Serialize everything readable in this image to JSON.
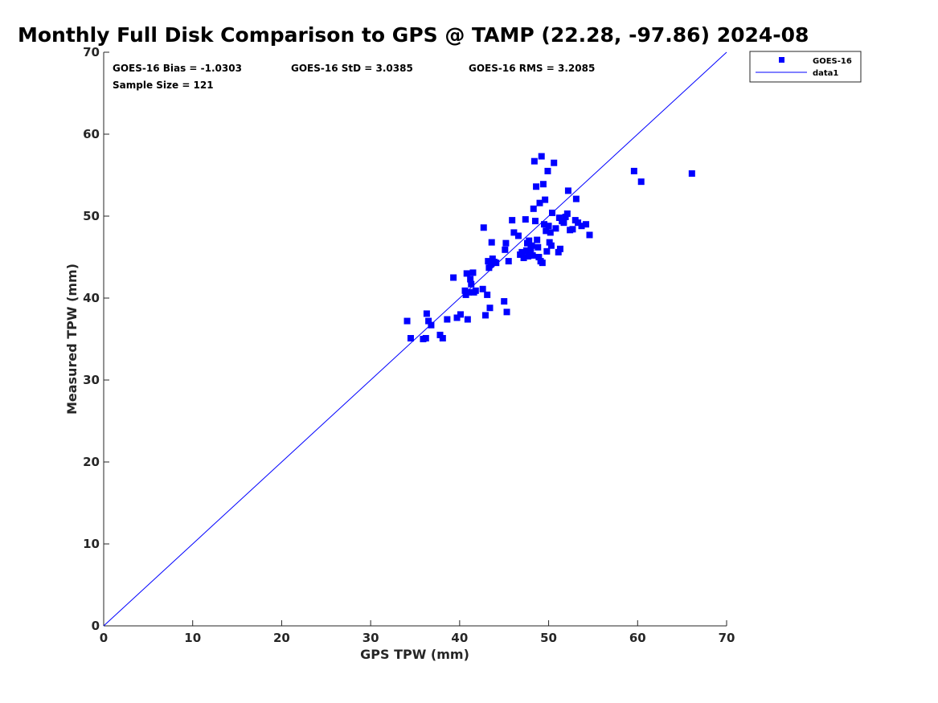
{
  "chart_data": {
    "type": "scatter",
    "title": "Monthly Full Disk Comparison to GPS @ TAMP (22.28, -97.86) 2024-08",
    "xlabel": "GPS TPW (mm)",
    "ylabel": "Measured TPW (mm)",
    "xlim": [
      0,
      70
    ],
    "ylim": [
      0,
      70
    ],
    "xticks": [
      "0",
      "10",
      "20",
      "30",
      "40",
      "50",
      "60",
      "70"
    ],
    "yticks": [
      "0",
      "10",
      "20",
      "30",
      "40",
      "50",
      "60",
      "70"
    ],
    "grid": false,
    "legend_position": "top-right",
    "legend": [
      {
        "label": "GOES-16",
        "marker": "square",
        "color": "#0000ff"
      },
      {
        "label": "data1",
        "marker": "line",
        "color": "#0000ff"
      }
    ],
    "stats": {
      "bias": "GOES-16 Bias = -1.0303",
      "std": "GOES-16 StD = 3.0385",
      "rms": "GOES-16 RMS = 3.2085",
      "sample": "Sample Size = 121"
    },
    "reference_line": {
      "name": "data1",
      "x": [
        0,
        70
      ],
      "y": [
        0,
        70
      ],
      "color": "#0000ff"
    },
    "series": [
      {
        "name": "GOES-16",
        "color": "#0000ff",
        "points": [
          [
            34.1,
            37.2
          ],
          [
            34.5,
            35.1
          ],
          [
            35.9,
            35.0
          ],
          [
            36.2,
            35.1
          ],
          [
            36.3,
            38.1
          ],
          [
            36.5,
            37.2
          ],
          [
            36.8,
            36.7
          ],
          [
            37.8,
            35.5
          ],
          [
            38.1,
            35.1
          ],
          [
            38.6,
            37.4
          ],
          [
            39.3,
            42.5
          ],
          [
            39.7,
            37.6
          ],
          [
            40.1,
            38.0
          ],
          [
            40.6,
            40.9
          ],
          [
            40.7,
            40.4
          ],
          [
            40.8,
            43.0
          ],
          [
            40.9,
            37.4
          ],
          [
            41.0,
            40.7
          ],
          [
            41.2,
            42.3
          ],
          [
            41.3,
            41.7
          ],
          [
            41.5,
            43.1
          ],
          [
            41.6,
            40.7
          ],
          [
            41.8,
            40.9
          ],
          [
            42.6,
            41.1
          ],
          [
            42.7,
            48.6
          ],
          [
            42.9,
            37.9
          ],
          [
            43.1,
            40.4
          ],
          [
            43.2,
            44.5
          ],
          [
            43.3,
            43.7
          ],
          [
            43.4,
            38.8
          ],
          [
            43.5,
            44.1
          ],
          [
            43.6,
            46.8
          ],
          [
            43.7,
            44.8
          ],
          [
            43.9,
            44.4
          ],
          [
            44.1,
            44.3
          ],
          [
            45.0,
            39.6
          ],
          [
            45.1,
            45.9
          ],
          [
            45.2,
            46.7
          ],
          [
            45.3,
            38.3
          ],
          [
            45.5,
            44.5
          ],
          [
            45.9,
            49.5
          ],
          [
            46.1,
            48.0
          ],
          [
            46.6,
            47.6
          ],
          [
            46.8,
            45.3
          ],
          [
            47.0,
            45.6
          ],
          [
            47.2,
            44.9
          ],
          [
            47.4,
            49.6
          ],
          [
            47.5,
            45.8
          ],
          [
            47.6,
            46.7
          ],
          [
            47.7,
            45.1
          ],
          [
            47.8,
            47.0
          ],
          [
            47.9,
            45.6
          ],
          [
            48.0,
            46.0
          ],
          [
            48.1,
            46.4
          ],
          [
            48.2,
            45.2
          ],
          [
            48.3,
            50.9
          ],
          [
            48.4,
            56.7
          ],
          [
            48.5,
            49.4
          ],
          [
            48.6,
            53.6
          ],
          [
            48.7,
            47.1
          ],
          [
            48.8,
            46.2
          ],
          [
            48.9,
            45.0
          ],
          [
            49.0,
            51.6
          ],
          [
            49.1,
            44.5
          ],
          [
            49.2,
            57.3
          ],
          [
            49.3,
            44.3
          ],
          [
            49.4,
            53.9
          ],
          [
            49.5,
            49.0
          ],
          [
            49.6,
            52.0
          ],
          [
            49.7,
            48.2
          ],
          [
            49.8,
            45.7
          ],
          [
            49.9,
            55.5
          ],
          [
            50.0,
            48.8
          ],
          [
            50.1,
            46.8
          ],
          [
            50.2,
            48.0
          ],
          [
            50.3,
            46.4
          ],
          [
            50.4,
            50.4
          ],
          [
            50.6,
            56.5
          ],
          [
            50.8,
            48.5
          ],
          [
            51.1,
            45.6
          ],
          [
            51.2,
            49.8
          ],
          [
            51.3,
            46.0
          ],
          [
            51.5,
            49.4
          ],
          [
            51.7,
            49.2
          ],
          [
            51.9,
            49.9
          ],
          [
            52.1,
            50.3
          ],
          [
            52.2,
            53.1
          ],
          [
            52.4,
            48.3
          ],
          [
            52.7,
            48.4
          ],
          [
            53.0,
            49.5
          ],
          [
            53.1,
            52.1
          ],
          [
            53.3,
            49.2
          ],
          [
            53.7,
            48.8
          ],
          [
            54.2,
            49.0
          ],
          [
            54.6,
            47.7
          ],
          [
            59.6,
            55.5
          ],
          [
            60.4,
            54.2
          ],
          [
            66.1,
            55.2
          ]
        ]
      }
    ]
  }
}
